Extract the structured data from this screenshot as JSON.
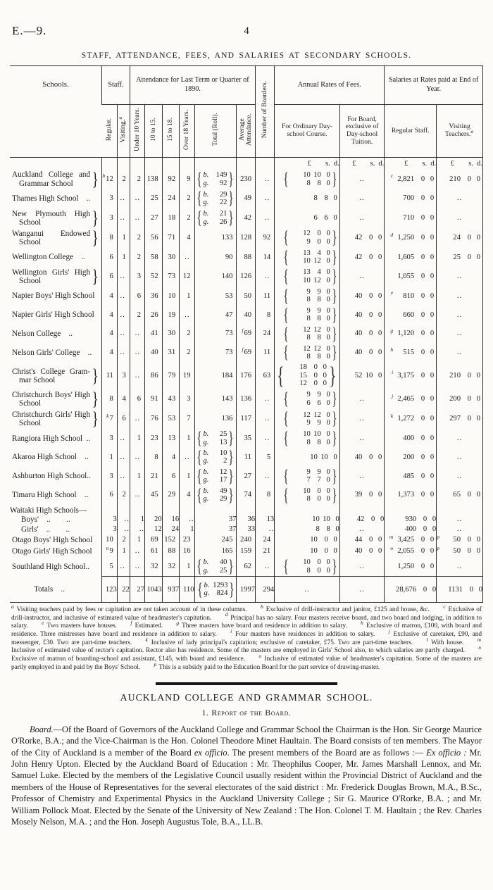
{
  "page": {
    "doc_ref": "E.—9.",
    "page_number": "4"
  },
  "table": {
    "title": "STAFF, ATTENDANCE, FEES, AND SALARIES AT SECONDARY SCHOOLS.",
    "headers": {
      "schools": "Schools.",
      "staff": "Staff.",
      "attendance": "Attendance for Last Term or Quarter of 1890.",
      "boarders": "Number of Boarders.",
      "fees": "Annual Rates of Fees.",
      "salaries": "Salaries at Rates paid at End of Year.",
      "sub": {
        "regular": "Regular.",
        "visiting": "Visiting.",
        "visiting_sup": "a",
        "under10": "Under 10 Years.",
        "a1015": "10 to 15.",
        "a1518": "15 to 18.",
        "over18": "Over 18 Years.",
        "total": "Total (Roll).",
        "average": "Average Attendance.",
        "fee_ord": "For Ordinary Day-school Course.",
        "fee_board": "For Board, exclusive of Day-school Tuition.",
        "sal_reg": "Regular Staff.",
        "sal_vis": "Visiting Teachers.",
        "sal_vis_sup": "a",
        "lsd": "£ s. d."
      }
    },
    "rows": [
      {
        "n": [
          "Auckland College and",
          "Grammar School"
        ],
        "brace": true,
        "c": [
          {
            "s": "b",
            "t": "12"
          },
          "2",
          "2",
          "138",
          "92",
          "9",
          {
            "st": [
              "b.149",
              "g. 92"
            ]
          },
          "230",
          "..",
          {
            "stm": [
              "10 10 0",
              "8 8 0"
            ]
          },
          "..",
          {
            "s": "c",
            "m": "2,821 0 0"
          },
          {
            "m": "210 0 0"
          }
        ]
      },
      {
        "n": [
          "Thames High School  .."
        ],
        "c": [
          "3",
          "..",
          "..",
          "25",
          "24",
          "2",
          {
            "st": [
              "b. 29",
              "g. 22"
            ]
          },
          "49",
          "..",
          {
            "m": "8 8 0"
          },
          "..",
          {
            "m": "700 0 0"
          },
          ".."
        ]
      },
      {
        "n": [
          "New Plymouth High",
          "School"
        ],
        "brace": true,
        "c": [
          "3",
          "..",
          "..",
          "27",
          "18",
          "2",
          {
            "st": [
              "b. 21",
              "g. 26"
            ]
          },
          "42",
          "..",
          {
            "m": "6 6 0"
          },
          "..",
          {
            "m": "710 0 0"
          },
          ".."
        ]
      },
      {
        "n": [
          "Wanganui Endowed",
          "School"
        ],
        "brace": true,
        "c": [
          "8",
          "1",
          "2",
          "56",
          "71",
          "4",
          "133",
          "128",
          "92",
          {
            "stm": [
              "12 0 0",
              "9 0 0"
            ]
          },
          {
            "m": "42 0 0"
          },
          {
            "s": "d",
            "m": "1,250 0 0"
          },
          {
            "m": "24 0 0"
          }
        ]
      },
      {
        "n": [
          "Wellington College  .."
        ],
        "c": [
          "6",
          "1",
          "2",
          "58",
          "30",
          "..",
          "90",
          "88",
          "14",
          {
            "stm": [
              "13 4 0",
              "10 12 0"
            ]
          },
          {
            "m": "42 0 0"
          },
          {
            "m": "1,605 0 0"
          },
          {
            "m": "25 0 0"
          }
        ]
      },
      {
        "n": [
          "Wellington Girls' High",
          "School"
        ],
        "brace": true,
        "c": [
          "6",
          "..",
          "3",
          "52",
          "73",
          "12",
          "140",
          "126",
          "..",
          {
            "stm": [
              "13 4 0",
              "10 12 0"
            ]
          },
          "..",
          {
            "m": "1,055 0 0"
          },
          ".."
        ]
      },
      {
        "n": [
          "Napier Boys' High School"
        ],
        "c": [
          "4",
          "..",
          "6",
          "36",
          "10",
          "1",
          "53",
          "50",
          "11",
          {
            "stm": [
              "9 9 0",
              "8 8 0"
            ]
          },
          {
            "m": "40 0 0"
          },
          {
            "s": "e",
            "m": "810 0 0"
          },
          ".."
        ]
      },
      {
        "n": [
          "Napier Girls' High School"
        ],
        "c": [
          "4",
          "..",
          "2",
          "26",
          "19",
          "..",
          "47",
          "40",
          "8",
          {
            "stm": [
              "9 9 0",
              "8 8 0"
            ]
          },
          {
            "m": "40 0 0"
          },
          {
            "m": "660 0 0"
          },
          ".."
        ]
      },
      {
        "n": [
          "Nelson College  .."
        ],
        "c": [
          "4",
          "..",
          "..",
          "41",
          "30",
          "2",
          "73",
          {
            "s": "f",
            "t": "69"
          },
          "24",
          {
            "stm": [
              "12 12 0",
              "8 8 0"
            ]
          },
          {
            "m": "40 0 0"
          },
          {
            "s": "g",
            "m": "1,120 0 0"
          },
          ".."
        ]
      },
      {
        "n": [
          "Nelson Girls' College  .."
        ],
        "c": [
          "4",
          "..",
          "..",
          "40",
          "31",
          "2",
          "73",
          {
            "s": "f",
            "t": "69"
          },
          "11",
          {
            "stm": [
              "12 12 0",
              "8 8 0"
            ]
          },
          {
            "m": "40 0 0"
          },
          {
            "s": "h",
            "m": "515 0 0"
          },
          ".."
        ]
      },
      {
        "n": [
          "Christ's College Gram-",
          "mar School"
        ],
        "brace": true,
        "c": [
          "11",
          "3",
          "..",
          "86",
          "79",
          "19",
          "184",
          "176",
          "63",
          {
            "stm": [
              "18 0 0",
              "15 0 0",
              "12 0 0"
            ]
          },
          {
            "m": "52 10 0"
          },
          {
            "s": "i",
            "m": "3,175 0 0"
          },
          {
            "m": "210 0 0"
          }
        ]
      },
      {
        "n": [
          "Christchurch Boys' High",
          "School"
        ],
        "brace": true,
        "c": [
          "8",
          "4",
          "6",
          "91",
          "43",
          "3",
          "143",
          "136",
          "..",
          {
            "stm": [
              "9 9 0",
              "6 6 0"
            ]
          },
          "..",
          {
            "s": "j",
            "m": "2,465 0 0"
          },
          {
            "m": "200 0 0"
          }
        ]
      },
      {
        "n": [
          "Christchurch Girls' High",
          "School"
        ],
        "brace": true,
        "c": [
          {
            "s": "k",
            "t": "7"
          },
          "6",
          "..",
          "76",
          "53",
          "7",
          "136",
          "117",
          "..",
          {
            "stm": [
              "12 12 0",
              "9 9 0"
            ]
          },
          "..",
          {
            "s": "k",
            "m": "1,272 0 0"
          },
          {
            "m": "297 0 0"
          }
        ]
      },
      {
        "n": [
          "Rangiora High School .."
        ],
        "c": [
          "3",
          "..",
          "1",
          "23",
          "13",
          "1",
          {
            "st": [
              "b. 25",
              "g. 13"
            ]
          },
          "35",
          "..",
          {
            "stm": [
              "10 10 0",
              "8 8 0"
            ]
          },
          "..",
          {
            "m": "400 0 0"
          },
          ".."
        ]
      },
      {
        "n": [
          "Akaroa High School  .."
        ],
        "c": [
          "1",
          "..",
          "..",
          "8",
          "4",
          "..",
          {
            "st": [
              "b. 10",
              "g. 2"
            ]
          },
          "11",
          "5",
          {
            "m": "10 10 0"
          },
          {
            "m": "40 0 0"
          },
          {
            "m": "200 0 0"
          },
          ".."
        ]
      },
      {
        "n": [
          "Ashburton High School.."
        ],
        "c": [
          "3",
          "..",
          "1",
          "21",
          "6",
          "1",
          {
            "st": [
              "b. 12",
              "g. 17"
            ]
          },
          "27",
          "..",
          {
            "stm": [
              "9 9 0",
              "7 7 0"
            ]
          },
          "..",
          {
            "m": "485 0 0"
          },
          ".."
        ]
      },
      {
        "n": [
          "Timaru High School  .."
        ],
        "c": [
          "6",
          "2",
          "..",
          "45",
          "29",
          "4",
          {
            "st": [
              "b. 49",
              "g. 29"
            ]
          },
          "74",
          "8",
          {
            "stm": [
              "10 0 0",
              "8 0 0"
            ]
          },
          {
            "m": "39 0 0"
          },
          {
            "m": "1,373 0 0"
          },
          {
            "m": "65 0 0"
          }
        ]
      },
      {
        "n": [
          "Waitaki High Schools—"
        ],
        "ghead": true
      },
      {
        "n": [
          "Boys' ..  .."
        ],
        "sub": true,
        "tight": true,
        "c": [
          "3",
          "..",
          "1",
          "20",
          "16",
          "..",
          "37",
          "36",
          "13",
          {
            "m": "10 10 0"
          },
          {
            "m": "42 0 0"
          },
          {
            "m": "930 0 0"
          },
          ".."
        ]
      },
      {
        "n": [
          "Girls' ..  .."
        ],
        "sub": true,
        "tight": true,
        "c": [
          "3",
          "..",
          "..",
          "12",
          "24",
          "1",
          "37",
          "33",
          "..",
          {
            "m": "8 8 0"
          },
          "..",
          {
            "m": "400 0 0"
          },
          ".."
        ]
      },
      {
        "n": [
          "Otago Boys' High School"
        ],
        "c": [
          "10",
          "2",
          "1",
          "69",
          "152",
          "23",
          "245",
          "240",
          "24",
          {
            "m": "10 0 0"
          },
          {
            "m": "44 0 0"
          },
          {
            "s": "m",
            "m": "3,425 0 0"
          },
          {
            "s": "p",
            "m": "50 0 0"
          }
        ]
      },
      {
        "n": [
          "Otago Girls' High School"
        ],
        "c": [
          {
            "s": "n",
            "t": "9"
          },
          "1",
          "..",
          "61",
          "88",
          "16",
          "165",
          "159",
          "21",
          {
            "m": "10 0 0"
          },
          {
            "m": "40 0 0"
          },
          {
            "s": "o",
            "m": "2,055 0 0"
          },
          {
            "s": "p",
            "m": "50 0 0"
          }
        ]
      },
      {
        "n": [
          "Southland High School.."
        ],
        "c": [
          "5",
          "..",
          "..",
          "32",
          "32",
          "1",
          {
            "st": [
              "b. 40",
              "g. 25"
            ]
          },
          "62",
          "..",
          {
            "stm": [
              "10 0 0",
              "8 0 0"
            ]
          },
          "..",
          {
            "m": "1,250 0 0"
          },
          ".."
        ]
      },
      {
        "n": [
          "Totals .."
        ],
        "total": true,
        "c": [
          "123",
          "22",
          "27",
          "1043",
          "937",
          "110",
          {
            "st": [
              "b. 1293",
              "g. 824"
            ]
          },
          "1997",
          "294",
          "..",
          "..",
          {
            "m": "28,676 0 0"
          },
          {
            "m": "1131 0 0"
          }
        ]
      }
    ]
  },
  "footnotes": [
    {
      "m": "a",
      "t": "Visiting teachers paid by fees or capitation are not taken account of in these columns."
    },
    {
      "m": "b",
      "t": "Exclusive of drill-instructor and janitor, £125 and house, &c."
    },
    {
      "m": "c",
      "t": "Exclusive of drill-instructor, and inclusive of estimated value of headmaster's capitation."
    },
    {
      "m": "d",
      "t": "Principal has no salary.  Four masters receive board, and two board and lodging, in addition to salary."
    },
    {
      "m": "e",
      "t": "Two masters have houses."
    },
    {
      "m": "f",
      "t": "Estimated."
    },
    {
      "m": "g",
      "t": "Three masters have board and residence in addition to salary."
    },
    {
      "m": "h",
      "t": "Exclusive of matron, £100, with board and residence.  Three mistresses have board and residence in addition to salary."
    },
    {
      "m": "i",
      "t": "Four masters have residences in addition to salary."
    },
    {
      "m": "j",
      "t": "Exclusive of caretaker, £90, and messenger, £30.  Two are part-time teachers."
    },
    {
      "m": "k",
      "t": "Inclusive of lady principal's capitation; exclusive of caretaker, £75.  Two are part-time teachers."
    },
    {
      "m": "l",
      "t": "With house."
    },
    {
      "m": "m",
      "t": "Inclusive of estimated value of rector's capitation.  Rector also has residence.  Some of the masters are employed in Girls' School also, to which salaries are partly charged."
    },
    {
      "m": "n",
      "t": "Exclusive of matron of boarding-school and assistant, £145, with board and residence."
    },
    {
      "m": "o",
      "t": "Inclusive of estimated value of headmaster's capitation.  Some of the masters are partly employed in and paid by the Boys' School."
    },
    {
      "m": "p",
      "t": "This is a subsidy paid to the Education Board for the part service of drawing-master."
    }
  ],
  "section": {
    "heading": "AUCKLAND COLLEGE AND GRAMMAR SCHOOL.",
    "subheading": "1. Report of the Board.",
    "paragraph": [
      {
        "t": "Board.",
        "i": true
      },
      {
        "t": "—Of the Board of Governors of the Auckland College and Grammar School the Chairman is the Hon. Sir George Maurice O'Rorke, B.A.; and the Vice-Chairman is the Hon. Colonel Theodore Minet Haultain.  The Board consists of ten members.  The Mayor of the City of Auckland is a member of the Board "
      },
      {
        "t": "ex officio",
        "i": true
      },
      {
        "t": ".  The present members of the Board are as follows :— "
      },
      {
        "t": "Ex officio :",
        "i": true
      },
      {
        "t": " Mr. John Henry Upton.  Elected by the Auckland Board of Education : Mr. Theophilus Cooper, Mr. James Marshall Lennox, and Mr. Samuel Luke.  Elected by the members of the Legislative Council usually resident within the Provincial District of Auckland and the members of the House of Representatives for the several electorates of the said district : Mr. Frederick Douglas Brown, M.A., B.Sc., Professor of Chemistry and Experimental Physics in the Auckland University College ; Sir G. Maurice O'Rorke, B.A. ; and Mr. William Pollock Moat.  Elected by the Senate of the University of New Zealand : The Hon. Colonel T. M. Haultain ; the Rev. Charles Mosely Nelson, M.A. ; and the Hon. Joseph Augustus Tole, B.A., LL.B."
      }
    ]
  }
}
